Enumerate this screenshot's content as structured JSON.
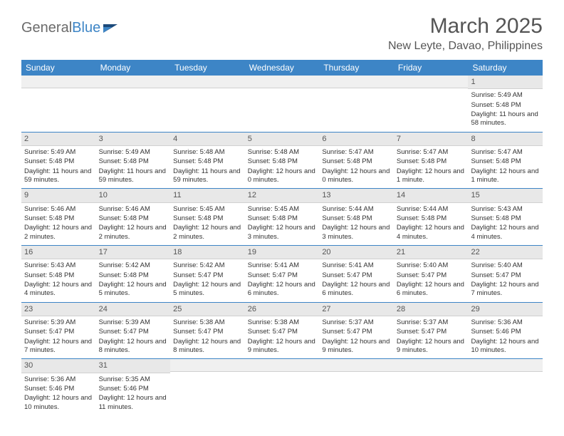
{
  "brand": {
    "prefix": "General",
    "suffix": "Blue"
  },
  "title": "March 2025",
  "location": "New Leyte, Davao, Philippines",
  "colors": {
    "header_bg": "#3d85c6",
    "header_text": "#ffffff",
    "daybar_bg": "#e8e8e8",
    "text": "#333333",
    "border": "#3d85c6"
  },
  "weekdays": [
    "Sunday",
    "Monday",
    "Tuesday",
    "Wednesday",
    "Thursday",
    "Friday",
    "Saturday"
  ],
  "weeks": [
    [
      {
        "day": ""
      },
      {
        "day": ""
      },
      {
        "day": ""
      },
      {
        "day": ""
      },
      {
        "day": ""
      },
      {
        "day": ""
      },
      {
        "day": "1",
        "sunrise": "Sunrise: 5:49 AM",
        "sunset": "Sunset: 5:48 PM",
        "daylight": "Daylight: 11 hours and 58 minutes."
      }
    ],
    [
      {
        "day": "2",
        "sunrise": "Sunrise: 5:49 AM",
        "sunset": "Sunset: 5:48 PM",
        "daylight": "Daylight: 11 hours and 59 minutes."
      },
      {
        "day": "3",
        "sunrise": "Sunrise: 5:49 AM",
        "sunset": "Sunset: 5:48 PM",
        "daylight": "Daylight: 11 hours and 59 minutes."
      },
      {
        "day": "4",
        "sunrise": "Sunrise: 5:48 AM",
        "sunset": "Sunset: 5:48 PM",
        "daylight": "Daylight: 11 hours and 59 minutes."
      },
      {
        "day": "5",
        "sunrise": "Sunrise: 5:48 AM",
        "sunset": "Sunset: 5:48 PM",
        "daylight": "Daylight: 12 hours and 0 minutes."
      },
      {
        "day": "6",
        "sunrise": "Sunrise: 5:47 AM",
        "sunset": "Sunset: 5:48 PM",
        "daylight": "Daylight: 12 hours and 0 minutes."
      },
      {
        "day": "7",
        "sunrise": "Sunrise: 5:47 AM",
        "sunset": "Sunset: 5:48 PM",
        "daylight": "Daylight: 12 hours and 1 minute."
      },
      {
        "day": "8",
        "sunrise": "Sunrise: 5:47 AM",
        "sunset": "Sunset: 5:48 PM",
        "daylight": "Daylight: 12 hours and 1 minute."
      }
    ],
    [
      {
        "day": "9",
        "sunrise": "Sunrise: 5:46 AM",
        "sunset": "Sunset: 5:48 PM",
        "daylight": "Daylight: 12 hours and 2 minutes."
      },
      {
        "day": "10",
        "sunrise": "Sunrise: 5:46 AM",
        "sunset": "Sunset: 5:48 PM",
        "daylight": "Daylight: 12 hours and 2 minutes."
      },
      {
        "day": "11",
        "sunrise": "Sunrise: 5:45 AM",
        "sunset": "Sunset: 5:48 PM",
        "daylight": "Daylight: 12 hours and 2 minutes."
      },
      {
        "day": "12",
        "sunrise": "Sunrise: 5:45 AM",
        "sunset": "Sunset: 5:48 PM",
        "daylight": "Daylight: 12 hours and 3 minutes."
      },
      {
        "day": "13",
        "sunrise": "Sunrise: 5:44 AM",
        "sunset": "Sunset: 5:48 PM",
        "daylight": "Daylight: 12 hours and 3 minutes."
      },
      {
        "day": "14",
        "sunrise": "Sunrise: 5:44 AM",
        "sunset": "Sunset: 5:48 PM",
        "daylight": "Daylight: 12 hours and 4 minutes."
      },
      {
        "day": "15",
        "sunrise": "Sunrise: 5:43 AM",
        "sunset": "Sunset: 5:48 PM",
        "daylight": "Daylight: 12 hours and 4 minutes."
      }
    ],
    [
      {
        "day": "16",
        "sunrise": "Sunrise: 5:43 AM",
        "sunset": "Sunset: 5:48 PM",
        "daylight": "Daylight: 12 hours and 4 minutes."
      },
      {
        "day": "17",
        "sunrise": "Sunrise: 5:42 AM",
        "sunset": "Sunset: 5:48 PM",
        "daylight": "Daylight: 12 hours and 5 minutes."
      },
      {
        "day": "18",
        "sunrise": "Sunrise: 5:42 AM",
        "sunset": "Sunset: 5:47 PM",
        "daylight": "Daylight: 12 hours and 5 minutes."
      },
      {
        "day": "19",
        "sunrise": "Sunrise: 5:41 AM",
        "sunset": "Sunset: 5:47 PM",
        "daylight": "Daylight: 12 hours and 6 minutes."
      },
      {
        "day": "20",
        "sunrise": "Sunrise: 5:41 AM",
        "sunset": "Sunset: 5:47 PM",
        "daylight": "Daylight: 12 hours and 6 minutes."
      },
      {
        "day": "21",
        "sunrise": "Sunrise: 5:40 AM",
        "sunset": "Sunset: 5:47 PM",
        "daylight": "Daylight: 12 hours and 6 minutes."
      },
      {
        "day": "22",
        "sunrise": "Sunrise: 5:40 AM",
        "sunset": "Sunset: 5:47 PM",
        "daylight": "Daylight: 12 hours and 7 minutes."
      }
    ],
    [
      {
        "day": "23",
        "sunrise": "Sunrise: 5:39 AM",
        "sunset": "Sunset: 5:47 PM",
        "daylight": "Daylight: 12 hours and 7 minutes."
      },
      {
        "day": "24",
        "sunrise": "Sunrise: 5:39 AM",
        "sunset": "Sunset: 5:47 PM",
        "daylight": "Daylight: 12 hours and 8 minutes."
      },
      {
        "day": "25",
        "sunrise": "Sunrise: 5:38 AM",
        "sunset": "Sunset: 5:47 PM",
        "daylight": "Daylight: 12 hours and 8 minutes."
      },
      {
        "day": "26",
        "sunrise": "Sunrise: 5:38 AM",
        "sunset": "Sunset: 5:47 PM",
        "daylight": "Daylight: 12 hours and 9 minutes."
      },
      {
        "day": "27",
        "sunrise": "Sunrise: 5:37 AM",
        "sunset": "Sunset: 5:47 PM",
        "daylight": "Daylight: 12 hours and 9 minutes."
      },
      {
        "day": "28",
        "sunrise": "Sunrise: 5:37 AM",
        "sunset": "Sunset: 5:47 PM",
        "daylight": "Daylight: 12 hours and 9 minutes."
      },
      {
        "day": "29",
        "sunrise": "Sunrise: 5:36 AM",
        "sunset": "Sunset: 5:46 PM",
        "daylight": "Daylight: 12 hours and 10 minutes."
      }
    ],
    [
      {
        "day": "30",
        "sunrise": "Sunrise: 5:36 AM",
        "sunset": "Sunset: 5:46 PM",
        "daylight": "Daylight: 12 hours and 10 minutes."
      },
      {
        "day": "31",
        "sunrise": "Sunrise: 5:35 AM",
        "sunset": "Sunset: 5:46 PM",
        "daylight": "Daylight: 12 hours and 11 minutes."
      },
      {
        "day": ""
      },
      {
        "day": ""
      },
      {
        "day": ""
      },
      {
        "day": ""
      },
      {
        "day": ""
      }
    ]
  ]
}
